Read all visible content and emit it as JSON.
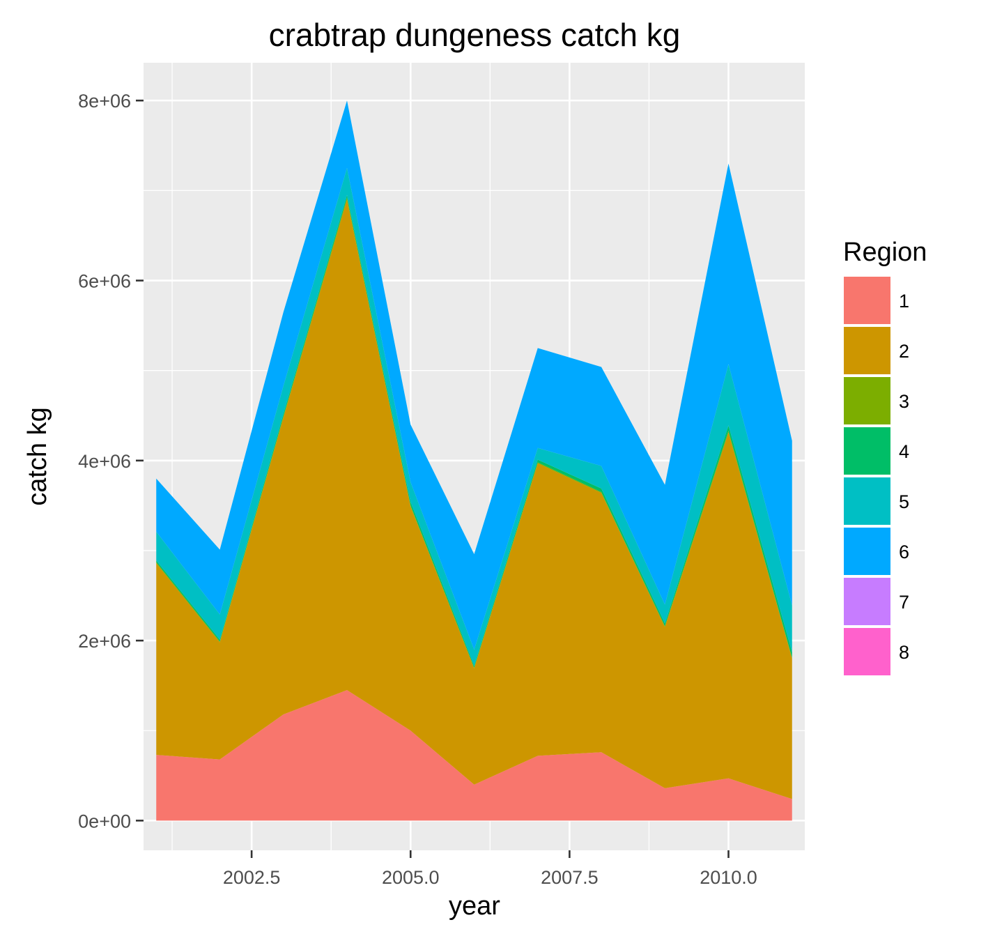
{
  "chart_data": {
    "type": "area",
    "stacked": true,
    "title": "crabtrap dungeness catch kg",
    "xlabel": "year",
    "ylabel": "catch kg",
    "xlim": [
      2000.8,
      2011.2
    ],
    "ylim": [
      -330000,
      8420000
    ],
    "x_ticks": [
      2002.5,
      2005.0,
      2007.5,
      2010.0
    ],
    "x_tick_labels": [
      "2002.5",
      "2005.0",
      "2007.5",
      "2010.0"
    ],
    "y_ticks": [
      0,
      2000000,
      4000000,
      6000000,
      8000000
    ],
    "y_tick_labels": [
      "0e+00",
      "2e+06",
      "4e+06",
      "6e+06",
      "8e+06"
    ],
    "grid": true,
    "legend_title": "Region",
    "legend_position": "right",
    "x": [
      2001,
      2002,
      2003,
      2004,
      2005,
      2006,
      2007,
      2008,
      2009,
      2010,
      2011
    ],
    "series": [
      {
        "name": "1",
        "color": "#F8766D",
        "values": [
          730000,
          680000,
          1180000,
          1450000,
          1000000,
          400000,
          720000,
          760000,
          360000,
          470000,
          240000
        ]
      },
      {
        "name": "2",
        "color": "#CD9600",
        "values": [
          2130000,
          1300000,
          3300000,
          5450000,
          2490000,
          1290000,
          3250000,
          2880000,
          1790000,
          3840000,
          1560000
        ]
      },
      {
        "name": "3",
        "color": "#7CAE00",
        "values": [
          10000,
          10000,
          10000,
          20000,
          10000,
          10000,
          10000,
          10000,
          10000,
          20000,
          10000
        ]
      },
      {
        "name": "4",
        "color": "#00BE67",
        "values": [
          20000,
          20000,
          30000,
          30000,
          40000,
          20000,
          30000,
          40000,
          30000,
          60000,
          60000
        ]
      },
      {
        "name": "5",
        "color": "#00BFC4",
        "values": [
          320000,
          280000,
          310000,
          300000,
          220000,
          180000,
          130000,
          250000,
          210000,
          680000,
          520000
        ]
      },
      {
        "name": "6",
        "color": "#00A9FF",
        "values": [
          590000,
          720000,
          820000,
          750000,
          640000,
          1060000,
          1110000,
          1100000,
          1330000,
          2230000,
          1830000
        ]
      },
      {
        "name": "7",
        "color": "#C77CFF",
        "values": [
          0,
          0,
          0,
          0,
          0,
          0,
          0,
          0,
          0,
          0,
          0
        ]
      },
      {
        "name": "8",
        "color": "#FF61CC",
        "values": [
          0,
          0,
          0,
          0,
          0,
          0,
          0,
          0,
          0,
          0,
          0
        ]
      }
    ]
  }
}
